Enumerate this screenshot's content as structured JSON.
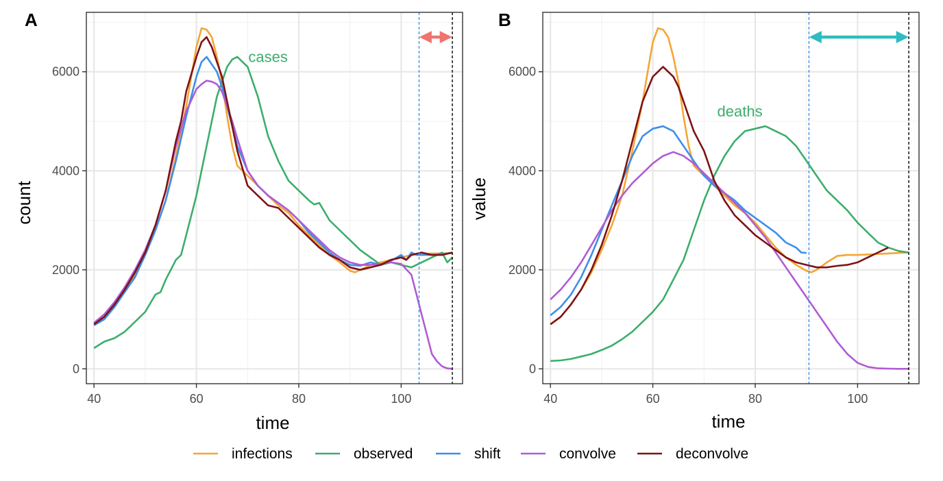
{
  "legend": {
    "entries": [
      {
        "label": "infections",
        "color": "#F5A534"
      },
      {
        "label": "observed",
        "color": "#3BAE6B"
      },
      {
        "label": "shift",
        "color": "#3C8FE8"
      },
      {
        "label": "convolve",
        "color": "#B05BD3"
      },
      {
        "label": "deconvolve",
        "color": "#7E1214"
      }
    ]
  },
  "chart_data": [
    {
      "type": "line",
      "panel_tag": "A",
      "xlabel": "time",
      "ylabel": "count",
      "xlim": [
        38.5,
        112
      ],
      "ylim": [
        -300,
        7200
      ],
      "xticks": [
        40,
        60,
        80,
        100
      ],
      "yticks": [
        0,
        2000,
        4000,
        6000
      ],
      "grid": true,
      "legend_position": "bottom",
      "vlines": [
        {
          "x": 103.5,
          "color": "#3C8FE8",
          "style": "dashed"
        },
        {
          "x": 110,
          "color": "#000000",
          "style": "dashed"
        }
      ],
      "arrow": {
        "x_start": 103.5,
        "x_end": 110,
        "y": 6700,
        "color": "#F0746E"
      },
      "annotation": {
        "text": "cases",
        "x": 74,
        "y": 6200,
        "color": "#3BAE6B"
      },
      "series": [
        {
          "name": "infections",
          "color": "#F5A534",
          "x": [
            40,
            42,
            44,
            46,
            48,
            50,
            52,
            54,
            56,
            58,
            59,
            60,
            61,
            62,
            63,
            64,
            65,
            66,
            67,
            68,
            70,
            72,
            74,
            76,
            78,
            80,
            82,
            84,
            86,
            88,
            90,
            91,
            92,
            94,
            96,
            98,
            100,
            102,
            104,
            106,
            108,
            110
          ],
          "y": [
            900,
            1050,
            1300,
            1600,
            1900,
            2300,
            2800,
            3400,
            4300,
            5300,
            5900,
            6500,
            6880,
            6850,
            6700,
            6300,
            5800,
            5100,
            4500,
            4100,
            3900,
            3700,
            3500,
            3300,
            3150,
            2900,
            2700,
            2500,
            2300,
            2150,
            1980,
            1950,
            2000,
            2100,
            2150,
            2200,
            2250,
            2300,
            2320,
            2330,
            2330,
            2340
          ]
        },
        {
          "name": "observed",
          "color": "#3BAE6B",
          "x": [
            40,
            42,
            44,
            46,
            48,
            50,
            52,
            53,
            54,
            56,
            57,
            58,
            60,
            62,
            64,
            66,
            67,
            68,
            69,
            70,
            72,
            74,
            76,
            78,
            80,
            82,
            83,
            84,
            86,
            88,
            90,
            92,
            94,
            96,
            98,
            100,
            102,
            104,
            106,
            108,
            109,
            110
          ],
          "y": [
            420,
            550,
            620,
            750,
            950,
            1150,
            1500,
            1550,
            1800,
            2200,
            2300,
            2700,
            3500,
            4500,
            5500,
            6100,
            6250,
            6300,
            6200,
            6100,
            5500,
            4700,
            4200,
            3800,
            3600,
            3400,
            3320,
            3350,
            3000,
            2800,
            2600,
            2400,
            2250,
            2100,
            2150,
            2100,
            2050,
            2150,
            2250,
            2350,
            2150,
            2250
          ]
        },
        {
          "name": "shift",
          "color": "#3C8FE8",
          "x": [
            40,
            42,
            44,
            46,
            48,
            50,
            52,
            54,
            56,
            58,
            60,
            61,
            62,
            63,
            64,
            65,
            66,
            68,
            70,
            72,
            74,
            76,
            78,
            80,
            82,
            84,
            86,
            88,
            90,
            92,
            94,
            96,
            98,
            100,
            101,
            102,
            103,
            104,
            106,
            108,
            110
          ],
          "y": [
            880,
            1000,
            1250,
            1550,
            1850,
            2300,
            2800,
            3400,
            4200,
            5100,
            5900,
            6200,
            6300,
            6150,
            6000,
            5700,
            5300,
            4500,
            4000,
            3700,
            3500,
            3350,
            3200,
            3000,
            2750,
            2550,
            2350,
            2200,
            2100,
            2080,
            2150,
            2100,
            2180,
            2300,
            2200,
            2350,
            2300,
            2300,
            2300,
            2320,
            2340
          ]
        },
        {
          "name": "convolve",
          "color": "#B05BD3",
          "x": [
            40,
            42,
            44,
            46,
            48,
            50,
            52,
            54,
            56,
            58,
            60,
            61,
            62,
            63,
            64,
            65,
            66,
            67,
            68,
            70,
            72,
            74,
            76,
            78,
            80,
            82,
            84,
            86,
            88,
            90,
            92,
            94,
            96,
            98,
            100,
            102,
            103,
            104,
            105,
            106,
            107,
            108,
            109,
            110
          ],
          "y": [
            930,
            1100,
            1350,
            1650,
            2000,
            2400,
            2900,
            3600,
            4500,
            5200,
            5650,
            5750,
            5820,
            5800,
            5750,
            5600,
            5300,
            5000,
            4650,
            4000,
            3700,
            3500,
            3350,
            3200,
            3000,
            2800,
            2600,
            2400,
            2250,
            2150,
            2100,
            2100,
            2120,
            2150,
            2120,
            1900,
            1500,
            1100,
            700,
            300,
            150,
            50,
            10,
            0
          ]
        },
        {
          "name": "deconvolve",
          "color": "#7E1214",
          "x": [
            40,
            42,
            44,
            46,
            48,
            50,
            52,
            54,
            56,
            57,
            58,
            60,
            61,
            62,
            63,
            64,
            65,
            66,
            67,
            68,
            70,
            72,
            74,
            76,
            78,
            80,
            82,
            84,
            86,
            88,
            90,
            92,
            94,
            96,
            98,
            100,
            101,
            102,
            104,
            106,
            108,
            110
          ],
          "y": [
            900,
            1050,
            1300,
            1600,
            1950,
            2350,
            2900,
            3600,
            4600,
            5000,
            5600,
            6300,
            6600,
            6700,
            6500,
            6200,
            5900,
            5400,
            4900,
            4400,
            3700,
            3500,
            3300,
            3250,
            3050,
            2850,
            2650,
            2450,
            2300,
            2200,
            2050,
            2000,
            2050,
            2100,
            2200,
            2250,
            2200,
            2300,
            2350,
            2300,
            2300,
            2350
          ]
        }
      ]
    },
    {
      "type": "line",
      "panel_tag": "B",
      "xlabel": "time",
      "ylabel": "value",
      "xlim": [
        38.5,
        112
      ],
      "ylim": [
        -300,
        7200
      ],
      "xticks": [
        40,
        60,
        80,
        100
      ],
      "yticks": [
        0,
        2000,
        4000,
        6000
      ],
      "grid": true,
      "legend_position": "bottom",
      "vlines": [
        {
          "x": 90.5,
          "color": "#3C8FE8",
          "style": "dashed"
        },
        {
          "x": 110,
          "color": "#000000",
          "style": "dashed"
        }
      ],
      "arrow": {
        "x_start": 90.5,
        "x_end": 110,
        "y": 6700,
        "color": "#2EBCC1"
      },
      "annotation": {
        "text": "deaths",
        "x": 77,
        "y": 5100,
        "color": "#3BAE6B"
      },
      "series": [
        {
          "name": "infections",
          "color": "#F5A534",
          "x": [
            40,
            42,
            44,
            46,
            48,
            50,
            52,
            54,
            56,
            58,
            59,
            60,
            61,
            62,
            63,
            64,
            65,
            66,
            67,
            68,
            70,
            72,
            74,
            76,
            78,
            80,
            82,
            84,
            86,
            88,
            90,
            91,
            92,
            94,
            96,
            98,
            100,
            102,
            104,
            106,
            108,
            110
          ],
          "y": [
            900,
            1050,
            1300,
            1600,
            1950,
            2400,
            2900,
            3500,
            4400,
            5400,
            6000,
            6600,
            6880,
            6850,
            6700,
            6300,
            5800,
            5100,
            4500,
            4100,
            3900,
            3700,
            3500,
            3300,
            3150,
            2950,
            2700,
            2450,
            2250,
            2100,
            1980,
            1950,
            2000,
            2150,
            2280,
            2300,
            2300,
            2310,
            2320,
            2330,
            2340,
            2350
          ]
        },
        {
          "name": "observed",
          "color": "#3BAE6B",
          "x": [
            40,
            42,
            44,
            46,
            48,
            50,
            52,
            54,
            56,
            58,
            60,
            62,
            64,
            66,
            68,
            70,
            72,
            74,
            76,
            78,
            80,
            82,
            84,
            86,
            88,
            90,
            92,
            94,
            96,
            98,
            100,
            102,
            104,
            106,
            108,
            110
          ],
          "y": [
            160,
            170,
            200,
            250,
            300,
            380,
            470,
            600,
            750,
            950,
            1150,
            1400,
            1800,
            2200,
            2800,
            3400,
            3900,
            4300,
            4600,
            4800,
            4850,
            4900,
            4800,
            4700,
            4500,
            4200,
            3900,
            3600,
            3400,
            3200,
            2950,
            2750,
            2550,
            2450,
            2380,
            2350
          ]
        },
        {
          "name": "shift",
          "color": "#3C8FE8",
          "x": [
            40,
            42,
            44,
            46,
            48,
            50,
            52,
            54,
            56,
            58,
            60,
            62,
            63,
            64,
            66,
            68,
            70,
            72,
            74,
            76,
            78,
            80,
            82,
            84,
            86,
            88,
            89,
            90
          ],
          "y": [
            1080,
            1250,
            1500,
            1850,
            2300,
            2800,
            3300,
            3800,
            4300,
            4700,
            4850,
            4900,
            4850,
            4800,
            4500,
            4200,
            3900,
            3700,
            3550,
            3400,
            3200,
            3050,
            2900,
            2750,
            2550,
            2450,
            2350,
            2340
          ]
        },
        {
          "name": "convolve",
          "color": "#B05BD3",
          "x": [
            40,
            42,
            44,
            46,
            48,
            50,
            52,
            54,
            56,
            58,
            60,
            62,
            64,
            66,
            68,
            70,
            72,
            74,
            76,
            78,
            80,
            82,
            84,
            86,
            88,
            90,
            92,
            94,
            96,
            98,
            100,
            102,
            104,
            106,
            108,
            110
          ],
          "y": [
            1400,
            1600,
            1850,
            2150,
            2500,
            2850,
            3200,
            3500,
            3750,
            3950,
            4150,
            4300,
            4380,
            4300,
            4150,
            3950,
            3750,
            3550,
            3350,
            3150,
            2900,
            2650,
            2350,
            2050,
            1750,
            1450,
            1150,
            850,
            550,
            300,
            120,
            40,
            10,
            5,
            0,
            0
          ]
        },
        {
          "name": "deconvolve",
          "color": "#7E1214",
          "x": [
            40,
            42,
            44,
            46,
            48,
            50,
            52,
            54,
            56,
            58,
            60,
            61,
            62,
            63,
            64,
            65,
            66,
            67,
            68,
            70,
            72,
            74,
            76,
            78,
            80,
            82,
            84,
            86,
            88,
            90,
            92,
            94,
            96,
            98,
            100,
            102,
            104,
            106
          ],
          "y": [
            900,
            1050,
            1300,
            1600,
            2000,
            2500,
            3100,
            3800,
            4600,
            5400,
            5900,
            6000,
            6100,
            6000,
            5900,
            5700,
            5400,
            5100,
            4800,
            4400,
            3800,
            3400,
            3100,
            2900,
            2700,
            2550,
            2400,
            2250,
            2150,
            2100,
            2050,
            2050,
            2080,
            2100,
            2150,
            2250,
            2350,
            2450
          ]
        }
      ]
    }
  ]
}
